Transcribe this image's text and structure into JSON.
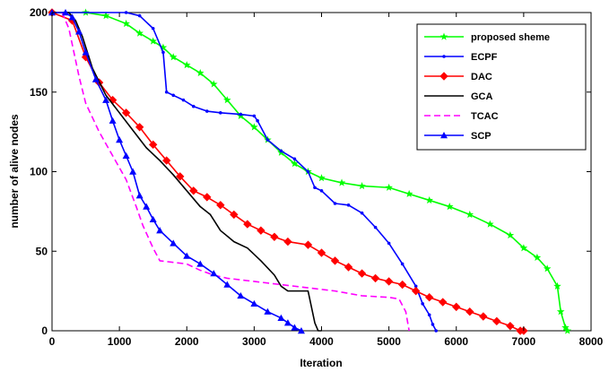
{
  "chart_data": {
    "type": "line",
    "title": "",
    "xlabel": "Iteration",
    "ylabel": "number of alive nodes",
    "xlim": [
      0,
      8000
    ],
    "ylim": [
      0,
      200
    ],
    "xticks": [
      "0",
      "1000",
      "2000",
      "3000",
      "4000",
      "5000",
      "6000",
      "7000",
      "8000"
    ],
    "yticks": [
      "0",
      "50",
      "100",
      "150",
      "200"
    ],
    "legend_position": "top-right",
    "grid": false,
    "series": [
      {
        "name": "proposed sheme",
        "color": "#00ff00",
        "marker": "star",
        "points": [
          [
            0,
            200
          ],
          [
            500,
            200
          ],
          [
            800,
            198
          ],
          [
            1100,
            193
          ],
          [
            1300,
            187
          ],
          [
            1500,
            182
          ],
          [
            1650,
            178
          ],
          [
            1800,
            172
          ],
          [
            2000,
            167
          ],
          [
            2200,
            162
          ],
          [
            2400,
            155
          ],
          [
            2600,
            145
          ],
          [
            2800,
            135
          ],
          [
            3000,
            128
          ],
          [
            3200,
            120
          ],
          [
            3400,
            112
          ],
          [
            3600,
            105
          ],
          [
            3800,
            100
          ],
          [
            4000,
            96
          ],
          [
            4300,
            93
          ],
          [
            4600,
            91
          ],
          [
            5000,
            90
          ],
          [
            5300,
            86
          ],
          [
            5600,
            82
          ],
          [
            5900,
            78
          ],
          [
            6200,
            73
          ],
          [
            6500,
            67
          ],
          [
            6800,
            60
          ],
          [
            7000,
            52
          ],
          [
            7200,
            46
          ],
          [
            7350,
            39
          ],
          [
            7500,
            28
          ],
          [
            7550,
            12
          ],
          [
            7620,
            2
          ],
          [
            7650,
            0
          ]
        ]
      },
      {
        "name": "ECPF",
        "color": "#0000ff",
        "marker": "dot",
        "points": [
          [
            0,
            200
          ],
          [
            1100,
            200
          ],
          [
            1300,
            198
          ],
          [
            1500,
            190
          ],
          [
            1650,
            175
          ],
          [
            1700,
            150
          ],
          [
            1800,
            148
          ],
          [
            1950,
            145
          ],
          [
            2100,
            141
          ],
          [
            2300,
            138
          ],
          [
            2500,
            137
          ],
          [
            2800,
            136
          ],
          [
            3000,
            135
          ],
          [
            3050,
            132
          ],
          [
            3200,
            120
          ],
          [
            3400,
            113
          ],
          [
            3600,
            108
          ],
          [
            3800,
            100
          ],
          [
            3900,
            90
          ],
          [
            4000,
            88
          ],
          [
            4200,
            80
          ],
          [
            4400,
            79
          ],
          [
            4600,
            74
          ],
          [
            4800,
            65
          ],
          [
            5000,
            55
          ],
          [
            5200,
            42
          ],
          [
            5400,
            28
          ],
          [
            5500,
            17
          ],
          [
            5600,
            10
          ],
          [
            5650,
            4
          ],
          [
            5700,
            0
          ]
        ]
      },
      {
        "name": "DAC",
        "color": "#ff0000",
        "marker": "diamond",
        "points": [
          [
            0,
            200
          ],
          [
            300,
            195
          ],
          [
            500,
            172
          ],
          [
            700,
            156
          ],
          [
            900,
            145
          ],
          [
            1100,
            137
          ],
          [
            1300,
            128
          ],
          [
            1500,
            117
          ],
          [
            1700,
            107
          ],
          [
            1900,
            97
          ],
          [
            2100,
            88
          ],
          [
            2300,
            84
          ],
          [
            2500,
            79
          ],
          [
            2700,
            73
          ],
          [
            2900,
            67
          ],
          [
            3100,
            63
          ],
          [
            3300,
            59
          ],
          [
            3500,
            56
          ],
          [
            3800,
            54
          ],
          [
            4000,
            49
          ],
          [
            4200,
            44
          ],
          [
            4400,
            40
          ],
          [
            4600,
            36
          ],
          [
            4800,
            33
          ],
          [
            5000,
            31
          ],
          [
            5200,
            29
          ],
          [
            5400,
            25
          ],
          [
            5600,
            21
          ],
          [
            5800,
            18
          ],
          [
            6000,
            15
          ],
          [
            6200,
            12
          ],
          [
            6400,
            9
          ],
          [
            6600,
            6
          ],
          [
            6800,
            3
          ],
          [
            6950,
            0
          ],
          [
            7000,
            0
          ]
        ]
      },
      {
        "name": "GCA",
        "color": "#000000",
        "marker": "none",
        "points": [
          [
            0,
            200
          ],
          [
            250,
            200
          ],
          [
            350,
            195
          ],
          [
            450,
            185
          ],
          [
            600,
            165
          ],
          [
            800,
            148
          ],
          [
            1000,
            137
          ],
          [
            1200,
            126
          ],
          [
            1400,
            115
          ],
          [
            1600,
            107
          ],
          [
            1800,
            98
          ],
          [
            2000,
            88
          ],
          [
            2200,
            78
          ],
          [
            2350,
            73
          ],
          [
            2500,
            63
          ],
          [
            2700,
            56
          ],
          [
            2900,
            52
          ],
          [
            3100,
            44
          ],
          [
            3300,
            35
          ],
          [
            3400,
            28
          ],
          [
            3500,
            25
          ],
          [
            3800,
            25
          ],
          [
            3850,
            15
          ],
          [
            3900,
            5
          ],
          [
            3950,
            0
          ],
          [
            4000,
            0
          ]
        ]
      },
      {
        "name": "TCAC",
        "color": "#ff00ff",
        "marker": "dashed",
        "points": [
          [
            0,
            200
          ],
          [
            150,
            200
          ],
          [
            250,
            190
          ],
          [
            400,
            160
          ],
          [
            500,
            143
          ],
          [
            700,
            125
          ],
          [
            900,
            110
          ],
          [
            1100,
            95
          ],
          [
            1250,
            78
          ],
          [
            1350,
            66
          ],
          [
            1500,
            52
          ],
          [
            1600,
            44
          ],
          [
            1800,
            43
          ],
          [
            2000,
            42
          ],
          [
            2200,
            38
          ],
          [
            2400,
            35
          ],
          [
            2600,
            33
          ],
          [
            3000,
            31
          ],
          [
            3400,
            29
          ],
          [
            3800,
            27
          ],
          [
            4200,
            25
          ],
          [
            4600,
            22
          ],
          [
            5000,
            21
          ],
          [
            5150,
            20
          ],
          [
            5250,
            12
          ],
          [
            5300,
            0
          ]
        ]
      },
      {
        "name": "SCP",
        "color": "#0000ff",
        "marker": "triangle",
        "points": [
          [
            0,
            200
          ],
          [
            200,
            200
          ],
          [
            300,
            197
          ],
          [
            400,
            188
          ],
          [
            500,
            175
          ],
          [
            650,
            158
          ],
          [
            800,
            145
          ],
          [
            900,
            132
          ],
          [
            1000,
            120
          ],
          [
            1100,
            110
          ],
          [
            1200,
            100
          ],
          [
            1300,
            85
          ],
          [
            1400,
            78
          ],
          [
            1500,
            70
          ],
          [
            1600,
            63
          ],
          [
            1800,
            55
          ],
          [
            2000,
            47
          ],
          [
            2200,
            42
          ],
          [
            2400,
            36
          ],
          [
            2600,
            29
          ],
          [
            2800,
            22
          ],
          [
            3000,
            17
          ],
          [
            3200,
            12
          ],
          [
            3400,
            8
          ],
          [
            3500,
            5
          ],
          [
            3600,
            2
          ],
          [
            3700,
            0
          ]
        ]
      }
    ]
  }
}
